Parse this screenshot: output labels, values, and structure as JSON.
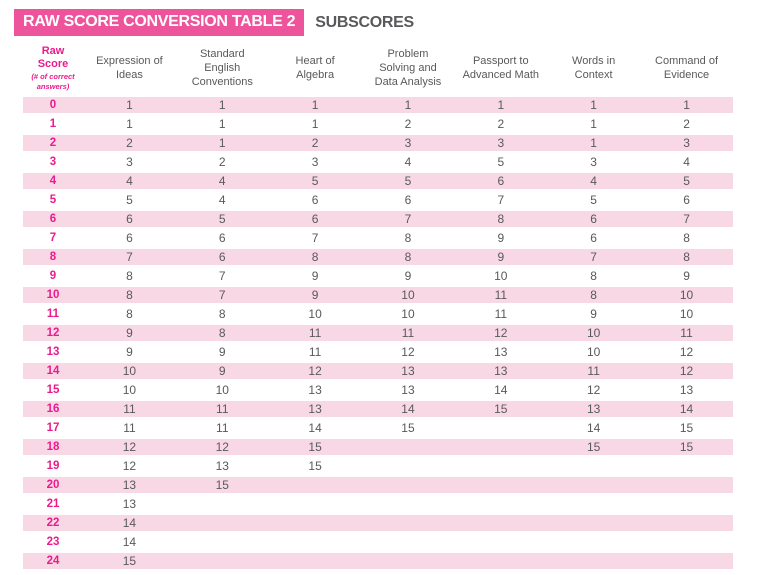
{
  "header": {
    "banner_title": "RAW SCORE CONVERSION TABLE 2",
    "subtitle": "SUBSCORES"
  },
  "colors": {
    "banner_pink": "#EE549B",
    "accent_magenta": "#EC1A8D",
    "row_stripe_pink": "#F9D8E6",
    "text_gray": "#58595B"
  },
  "table": {
    "raw_header": {
      "title": "Raw Score",
      "note": "(# of correct answers)"
    },
    "columns": [
      "Expression of Ideas",
      "Standard English Conventions",
      "Heart of Algebra",
      "Problem Solving and Data Analysis",
      "Passport to Advanced Math",
      "Words in Context",
      "Command of Evidence"
    ],
    "rows": [
      [
        0,
        1,
        1,
        1,
        1,
        1,
        1,
        1
      ],
      [
        1,
        1,
        1,
        1,
        2,
        2,
        1,
        2
      ],
      [
        2,
        2,
        1,
        2,
        3,
        3,
        1,
        3
      ],
      [
        3,
        3,
        2,
        3,
        4,
        5,
        3,
        4
      ],
      [
        4,
        4,
        4,
        5,
        5,
        6,
        4,
        5
      ],
      [
        5,
        5,
        4,
        6,
        6,
        7,
        5,
        6
      ],
      [
        6,
        6,
        5,
        6,
        7,
        8,
        6,
        7
      ],
      [
        7,
        6,
        6,
        7,
        8,
        9,
        6,
        8
      ],
      [
        8,
        7,
        6,
        8,
        8,
        9,
        7,
        8
      ],
      [
        9,
        8,
        7,
        9,
        9,
        10,
        8,
        9
      ],
      [
        10,
        8,
        7,
        9,
        10,
        11,
        8,
        10
      ],
      [
        11,
        8,
        8,
        10,
        10,
        11,
        9,
        10
      ],
      [
        12,
        9,
        8,
        11,
        11,
        12,
        10,
        11
      ],
      [
        13,
        9,
        9,
        11,
        12,
        13,
        10,
        12
      ],
      [
        14,
        10,
        9,
        12,
        13,
        13,
        11,
        12
      ],
      [
        15,
        10,
        10,
        13,
        13,
        14,
        12,
        13
      ],
      [
        16,
        11,
        11,
        13,
        14,
        15,
        13,
        14
      ],
      [
        17,
        11,
        11,
        14,
        15,
        "",
        14,
        15
      ],
      [
        18,
        12,
        12,
        15,
        "",
        "",
        15,
        15
      ],
      [
        19,
        12,
        13,
        15,
        "",
        "",
        "",
        ""
      ],
      [
        20,
        13,
        15,
        "",
        "",
        "",
        "",
        ""
      ],
      [
        21,
        13,
        "",
        "",
        "",
        "",
        "",
        ""
      ],
      [
        22,
        14,
        "",
        "",
        "",
        "",
        "",
        ""
      ],
      [
        23,
        14,
        "",
        "",
        "",
        "",
        "",
        ""
      ],
      [
        24,
        15,
        "",
        "",
        "",
        "",
        "",
        ""
      ]
    ]
  }
}
